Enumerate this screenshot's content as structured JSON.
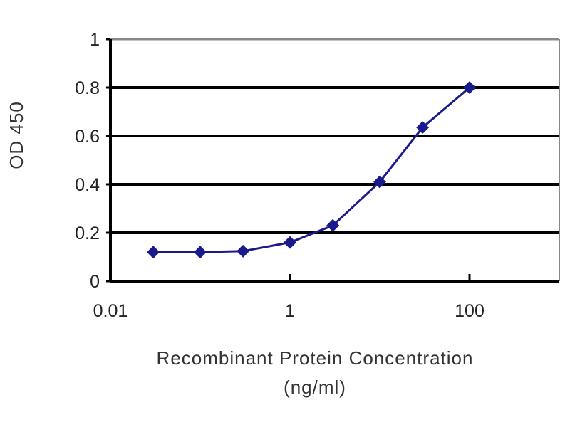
{
  "chart_data": {
    "type": "line",
    "title": "",
    "xlabel": "Recombinant Protein Concentration",
    "xlabel_unit": "(ng/ml)",
    "ylabel": "OD 450",
    "x_scale": "log",
    "xlim": [
      0.01,
      1000
    ],
    "ylim": [
      0,
      1
    ],
    "x_ticks": [
      {
        "value": 0.01,
        "label": "0.01"
      },
      {
        "value": 1,
        "label": "1"
      },
      {
        "value": 100,
        "label": "100"
      }
    ],
    "y_ticks": [
      {
        "value": 0,
        "label": "0"
      },
      {
        "value": 0.2,
        "label": "0.2"
      },
      {
        "value": 0.4,
        "label": "0.4"
      },
      {
        "value": 0.6,
        "label": "0.6"
      },
      {
        "value": 0.8,
        "label": "0.8"
      },
      {
        "value": 1,
        "label": "1"
      }
    ],
    "grid": "horizontal",
    "marker": "diamond",
    "series_color": "#1a1a8c",
    "series": [
      {
        "x": [
          0.03,
          0.1,
          0.3,
          1,
          3,
          10,
          30,
          100
        ],
        "y": [
          0.12,
          0.12,
          0.124,
          0.16,
          0.23,
          0.41,
          0.635,
          0.8
        ]
      }
    ]
  }
}
